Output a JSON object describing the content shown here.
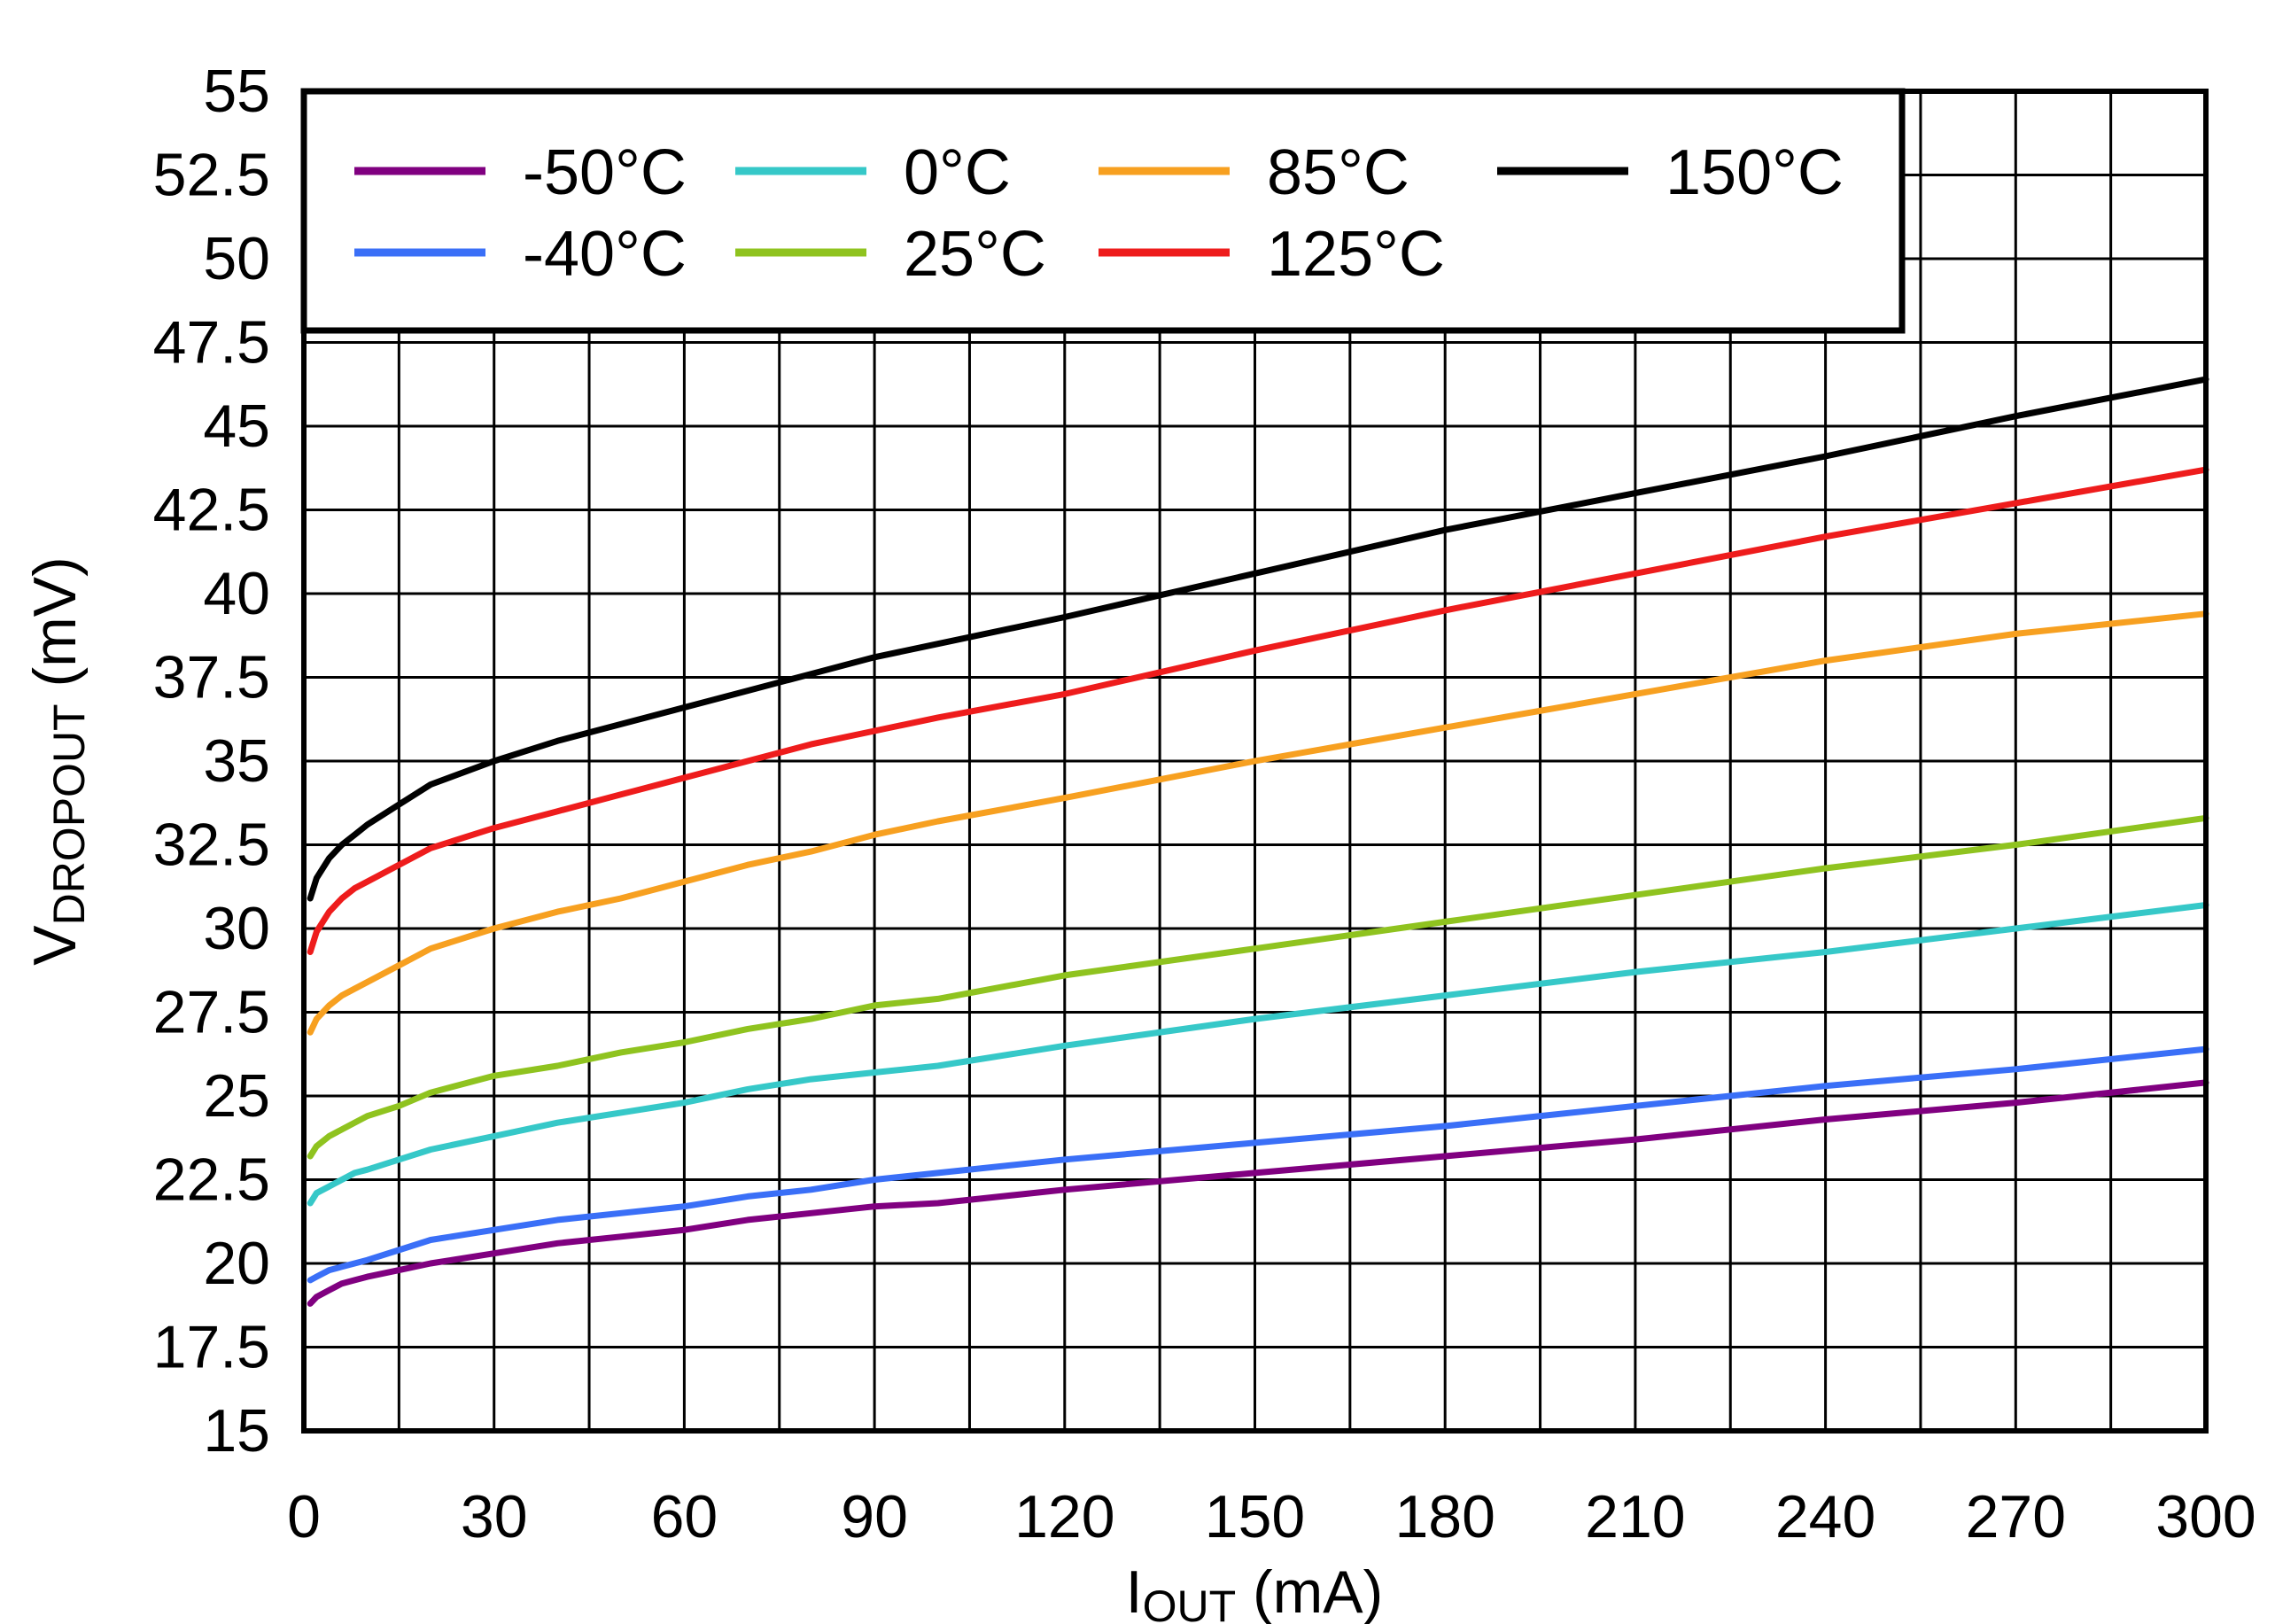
{
  "chart_data": {
    "type": "line",
    "title": "",
    "xlabel": {
      "main": "I",
      "sub": "OUT",
      "unit": " (mA)"
    },
    "ylabel": {
      "main": "V",
      "sub": "DROPOUT",
      "unit": " (mV)"
    },
    "xlim": [
      0,
      300
    ],
    "ylim": [
      15,
      55
    ],
    "xticks": [
      "0",
      "30",
      "60",
      "90",
      "120",
      "150",
      "180",
      "210",
      "240",
      "270",
      "300"
    ],
    "yticks": [
      "15",
      "17.5",
      "20",
      "22.5",
      "25",
      "27.5",
      "30",
      "32.5",
      "35",
      "37.5",
      "40",
      "42.5",
      "45",
      "47.5",
      "50",
      "52.5",
      "55"
    ],
    "xgrid_step": 15,
    "ygrid_step": 2.5,
    "grid": true,
    "legend_position": "top",
    "x": [
      1,
      2,
      4,
      6,
      8,
      10,
      15,
      20,
      30,
      40,
      50,
      60,
      70,
      80,
      90,
      100,
      120,
      150,
      180,
      210,
      240,
      270,
      300
    ],
    "series": [
      {
        "name": "-50°C",
        "color": "#800080",
        "values": [
          18.8,
          19.0,
          19.2,
          19.4,
          19.5,
          19.6,
          19.8,
          20.0,
          20.3,
          20.6,
          20.8,
          21.0,
          21.3,
          21.5,
          21.7,
          21.8,
          22.2,
          22.7,
          23.2,
          23.7,
          24.3,
          24.8,
          25.4
        ]
      },
      {
        "name": "-40°C",
        "color": "#3a6ff7",
        "values": [
          19.5,
          19.6,
          19.8,
          19.9,
          20.0,
          20.1,
          20.4,
          20.7,
          21.0,
          21.3,
          21.5,
          21.7,
          22.0,
          22.2,
          22.5,
          22.7,
          23.1,
          23.6,
          24.1,
          24.7,
          25.3,
          25.8,
          26.4
        ]
      },
      {
        "name": "0°C",
        "color": "#36c8c8",
        "values": [
          21.8,
          22.1,
          22.3,
          22.5,
          22.7,
          22.8,
          23.1,
          23.4,
          23.8,
          24.2,
          24.5,
          24.8,
          25.2,
          25.5,
          25.7,
          25.9,
          26.5,
          27.3,
          28.0,
          28.7,
          29.3,
          30.0,
          30.7
        ]
      },
      {
        "name": "25°C",
        "color": "#8fc31f",
        "values": [
          23.2,
          23.5,
          23.8,
          24.0,
          24.2,
          24.4,
          24.7,
          25.1,
          25.6,
          25.9,
          26.3,
          26.6,
          27.0,
          27.3,
          27.7,
          27.9,
          28.6,
          29.4,
          30.2,
          31.0,
          31.8,
          32.5,
          33.3
        ]
      },
      {
        "name": "85°C",
        "color": "#f7a020",
        "values": [
          26.9,
          27.3,
          27.7,
          28.0,
          28.2,
          28.4,
          28.9,
          29.4,
          30.0,
          30.5,
          30.9,
          31.4,
          31.9,
          32.3,
          32.8,
          33.2,
          33.9,
          35.0,
          36.0,
          37.0,
          38.0,
          38.8,
          39.4
        ]
      },
      {
        "name": "125°C",
        "color": "#ee1c1c",
        "values": [
          29.3,
          29.9,
          30.5,
          30.9,
          31.2,
          31.4,
          31.9,
          32.4,
          33.0,
          33.5,
          34.0,
          34.5,
          35.0,
          35.5,
          35.9,
          36.3,
          37.0,
          38.3,
          39.5,
          40.6,
          41.7,
          42.7,
          43.7
        ]
      },
      {
        "name": "150°C",
        "color": "#000000",
        "values": [
          30.9,
          31.5,
          32.1,
          32.5,
          32.8,
          33.1,
          33.7,
          34.3,
          35.0,
          35.6,
          36.1,
          36.6,
          37.1,
          37.6,
          38.1,
          38.5,
          39.3,
          40.6,
          41.9,
          43.0,
          44.1,
          45.3,
          46.4
        ]
      }
    ]
  }
}
